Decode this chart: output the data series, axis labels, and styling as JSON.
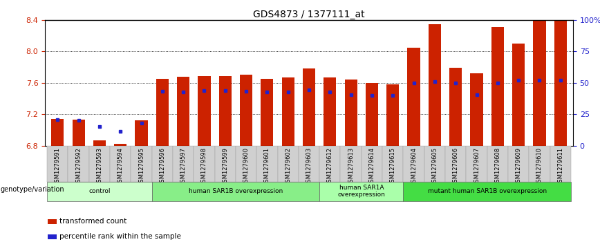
{
  "title": "GDS4873 / 1377111_at",
  "samples": [
    "GSM1279591",
    "GSM1279592",
    "GSM1279593",
    "GSM1279594",
    "GSM1279595",
    "GSM1279596",
    "GSM1279597",
    "GSM1279598",
    "GSM1279599",
    "GSM1279600",
    "GSM1279601",
    "GSM1279602",
    "GSM1279603",
    "GSM1279612",
    "GSM1279613",
    "GSM1279614",
    "GSM1279615",
    "GSM1279604",
    "GSM1279605",
    "GSM1279606",
    "GSM1279607",
    "GSM1279608",
    "GSM1279609",
    "GSM1279610",
    "GSM1279611"
  ],
  "transformed_counts": [
    7.14,
    7.13,
    6.87,
    6.82,
    7.12,
    7.65,
    7.68,
    7.69,
    7.69,
    7.7,
    7.65,
    7.67,
    7.78,
    7.67,
    7.64,
    7.6,
    7.58,
    8.05,
    8.35,
    7.79,
    7.72,
    8.31,
    8.1,
    8.39,
    8.4
  ],
  "percentile_ranks": [
    7.13,
    7.12,
    7.04,
    6.98,
    7.09,
    7.49,
    7.48,
    7.5,
    7.5,
    7.49,
    7.48,
    7.48,
    7.51,
    7.48,
    7.45,
    7.44,
    7.44,
    7.6,
    7.62,
    7.6,
    7.45,
    7.6,
    7.63,
    7.63,
    7.63
  ],
  "ymin": 6.8,
  "ymax": 8.4,
  "yticks": [
    6.8,
    7.2,
    7.6,
    8.0,
    8.4
  ],
  "right_ytick_pct": [
    0,
    25,
    50,
    75,
    100
  ],
  "right_ytick_labels": [
    "0",
    "25",
    "50",
    "75",
    "100%"
  ],
  "bar_color": "#CC2200",
  "dot_color": "#2222CC",
  "groups": [
    {
      "label": "control",
      "start": 0,
      "end": 4,
      "color": "#CCFFCC"
    },
    {
      "label": "human SAR1B overexpression",
      "start": 5,
      "end": 12,
      "color": "#88EE88"
    },
    {
      "label": "human SAR1A\noverexpression",
      "start": 13,
      "end": 16,
      "color": "#AAFFAA"
    },
    {
      "label": "mutant human SAR1B overexpression",
      "start": 17,
      "end": 24,
      "color": "#44DD44"
    }
  ],
  "genotype_label": "genotype/variation",
  "legend_items": [
    {
      "label": "transformed count",
      "color": "#CC2200",
      "marker": "s"
    },
    {
      "label": "percentile rank within the sample",
      "color": "#2222CC",
      "marker": "s"
    }
  ],
  "background_color": "#ffffff"
}
